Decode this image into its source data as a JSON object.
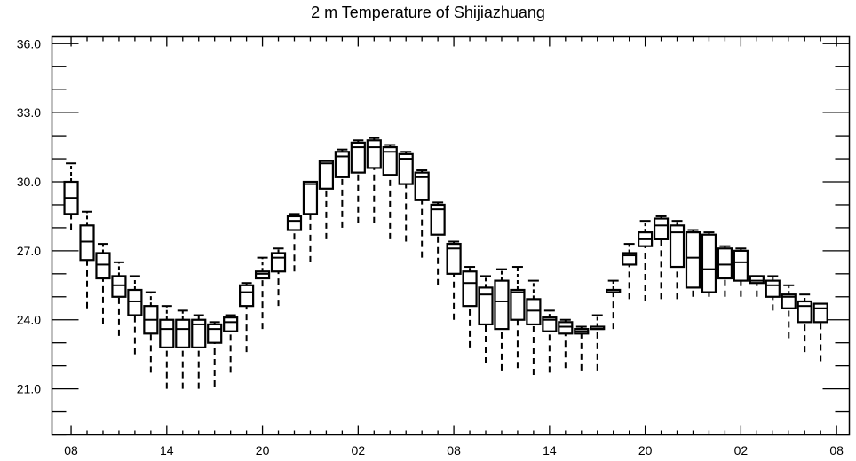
{
  "chart_data": {
    "type": "box",
    "title": "2 m Temperature of Shijiazhuang",
    "xlabel": "",
    "ylabel": "",
    "ylim": [
      19.0,
      36.3
    ],
    "yticks": [
      "36.0",
      "33.0",
      "30.0",
      "27.0",
      "24.0",
      "21.0"
    ],
    "ytick_values": [
      36.0,
      33.0,
      30.0,
      27.0,
      24.0,
      21.0
    ],
    "xticks": [
      "08",
      "14",
      "20",
      "02",
      "08",
      "14",
      "20",
      "02",
      "08"
    ],
    "xtick_hours": [
      0,
      6,
      12,
      18,
      24,
      30,
      36,
      42,
      48
    ],
    "xlim": [
      -1.2,
      48.8
    ],
    "grid": false,
    "legend": "none",
    "boxes": [
      {
        "x": 0,
        "whisker_low": 27.9,
        "q1": 28.6,
        "median": 29.3,
        "q3": 30.0,
        "whisker_high": 30.8
      },
      {
        "x": 1,
        "whisker_low": 24.5,
        "q1": 26.6,
        "median": 27.4,
        "q3": 28.1,
        "whisker_high": 28.7
      },
      {
        "x": 2,
        "whisker_low": 23.8,
        "q1": 25.8,
        "median": 26.4,
        "q3": 26.9,
        "whisker_high": 27.3
      },
      {
        "x": 3,
        "whisker_low": 23.3,
        "q1": 25.0,
        "median": 25.5,
        "q3": 25.9,
        "whisker_high": 26.5
      },
      {
        "x": 4,
        "whisker_low": 22.5,
        "q1": 24.2,
        "median": 24.8,
        "q3": 25.3,
        "whisker_high": 25.9
      },
      {
        "x": 5,
        "whisker_low": 21.7,
        "q1": 23.4,
        "median": 24.0,
        "q3": 24.6,
        "whisker_high": 25.2
      },
      {
        "x": 6,
        "whisker_low": 21.0,
        "q1": 22.8,
        "median": 23.6,
        "q3": 24.0,
        "whisker_high": 24.6
      },
      {
        "x": 7,
        "whisker_low": 21.0,
        "q1": 22.8,
        "median": 23.6,
        "q3": 24.0,
        "whisker_high": 24.4
      },
      {
        "x": 8,
        "whisker_low": 21.0,
        "q1": 22.8,
        "median": 23.8,
        "q3": 24.0,
        "whisker_high": 24.2
      },
      {
        "x": 9,
        "whisker_low": 21.1,
        "q1": 23.0,
        "median": 23.6,
        "q3": 23.8,
        "whisker_high": 23.9
      },
      {
        "x": 10,
        "whisker_low": 21.7,
        "q1": 23.5,
        "median": 23.9,
        "q3": 24.1,
        "whisker_high": 24.2
      },
      {
        "x": 11,
        "whisker_low": 22.6,
        "q1": 24.6,
        "median": 25.2,
        "q3": 25.5,
        "whisker_high": 25.6
      },
      {
        "x": 12,
        "whisker_low": 23.6,
        "q1": 25.8,
        "median": 26.0,
        "q3": 26.1,
        "whisker_high": 26.7
      },
      {
        "x": 13,
        "whisker_low": 24.6,
        "q1": 26.1,
        "median": 26.7,
        "q3": 26.9,
        "whisker_high": 27.1
      },
      {
        "x": 14,
        "whisker_low": 26.1,
        "q1": 27.9,
        "median": 28.3,
        "q3": 28.5,
        "whisker_high": 28.6
      },
      {
        "x": 15,
        "whisker_low": 26.5,
        "q1": 28.6,
        "median": 29.9,
        "q3": 30.0,
        "whisker_high": 30.0
      },
      {
        "x": 16,
        "whisker_low": 27.5,
        "q1": 29.7,
        "median": 30.8,
        "q3": 30.9,
        "whisker_high": 30.9
      },
      {
        "x": 17,
        "whisker_low": 28.0,
        "q1": 30.2,
        "median": 31.1,
        "q3": 31.3,
        "whisker_high": 31.4
      },
      {
        "x": 18,
        "whisker_low": 28.2,
        "q1": 30.4,
        "median": 31.5,
        "q3": 31.7,
        "whisker_high": 31.8
      },
      {
        "x": 19,
        "whisker_low": 28.2,
        "q1": 30.6,
        "median": 31.5,
        "q3": 31.8,
        "whisker_high": 31.9
      },
      {
        "x": 20,
        "whisker_low": 27.5,
        "q1": 30.3,
        "median": 31.3,
        "q3": 31.5,
        "whisker_high": 31.6
      },
      {
        "x": 21,
        "whisker_low": 27.4,
        "q1": 29.9,
        "median": 31.0,
        "q3": 31.2,
        "whisker_high": 31.3
      },
      {
        "x": 22,
        "whisker_low": 26.7,
        "q1": 29.2,
        "median": 30.2,
        "q3": 30.4,
        "whisker_high": 30.5
      },
      {
        "x": 23,
        "whisker_low": 25.5,
        "q1": 27.7,
        "median": 28.8,
        "q3": 29.0,
        "whisker_high": 29.1
      },
      {
        "x": 24,
        "whisker_low": 24.0,
        "q1": 26.0,
        "median": 27.1,
        "q3": 27.3,
        "whisker_high": 27.4
      },
      {
        "x": 25,
        "whisker_low": 22.8,
        "q1": 24.6,
        "median": 25.6,
        "q3": 26.1,
        "whisker_high": 26.3
      },
      {
        "x": 26,
        "whisker_low": 22.1,
        "q1": 23.8,
        "median": 25.1,
        "q3": 25.4,
        "whisker_high": 25.9
      },
      {
        "x": 27,
        "whisker_low": 21.8,
        "q1": 23.6,
        "median": 24.8,
        "q3": 25.7,
        "whisker_high": 26.2
      },
      {
        "x": 28,
        "whisker_low": 21.9,
        "q1": 24.0,
        "median": 25.2,
        "q3": 25.3,
        "whisker_high": 26.3
      },
      {
        "x": 29,
        "whisker_low": 21.6,
        "q1": 23.8,
        "median": 24.4,
        "q3": 24.9,
        "whisker_high": 25.7
      },
      {
        "x": 30,
        "whisker_low": 21.7,
        "q1": 23.5,
        "median": 24.0,
        "q3": 24.1,
        "whisker_high": 24.4
      },
      {
        "x": 31,
        "whisker_low": 21.9,
        "q1": 23.4,
        "median": 23.7,
        "q3": 23.9,
        "whisker_high": 24.0
      },
      {
        "x": 32,
        "whisker_low": 21.8,
        "q1": 23.4,
        "median": 23.5,
        "q3": 23.6,
        "whisker_high": 23.7
      },
      {
        "x": 33,
        "whisker_low": 21.8,
        "q1": 23.6,
        "median": 23.6,
        "q3": 23.7,
        "whisker_high": 24.2
      },
      {
        "x": 34,
        "whisker_low": 23.6,
        "q1": 25.2,
        "median": 25.2,
        "q3": 25.3,
        "whisker_high": 25.7
      },
      {
        "x": 35,
        "whisker_low": 24.9,
        "q1": 26.4,
        "median": 26.8,
        "q3": 26.9,
        "whisker_high": 27.3
      },
      {
        "x": 36,
        "whisker_low": 24.8,
        "q1": 27.2,
        "median": 27.5,
        "q3": 27.8,
        "whisker_high": 28.3
      },
      {
        "x": 37,
        "whisker_low": 24.9,
        "q1": 27.5,
        "median": 28.1,
        "q3": 28.4,
        "whisker_high": 28.5
      },
      {
        "x": 38,
        "whisker_low": 24.9,
        "q1": 26.3,
        "median": 27.8,
        "q3": 28.1,
        "whisker_high": 28.3
      },
      {
        "x": 39,
        "whisker_low": 25.0,
        "q1": 25.4,
        "median": 26.7,
        "q3": 27.8,
        "whisker_high": 27.9
      },
      {
        "x": 40,
        "whisker_low": 25.0,
        "q1": 25.2,
        "median": 26.2,
        "q3": 27.7,
        "whisker_high": 27.8
      },
      {
        "x": 41,
        "whisker_low": 25.0,
        "q1": 25.8,
        "median": 26.4,
        "q3": 27.1,
        "whisker_high": 27.2
      },
      {
        "x": 42,
        "whisker_low": 25.0,
        "q1": 25.7,
        "median": 26.5,
        "q3": 27.0,
        "whisker_high": 27.1
      },
      {
        "x": 43,
        "whisker_low": 25.0,
        "q1": 25.6,
        "median": 25.7,
        "q3": 25.9,
        "whisker_high": 25.9
      },
      {
        "x": 44,
        "whisker_low": 24.4,
        "q1": 25.0,
        "median": 25.5,
        "q3": 25.7,
        "whisker_high": 25.9
      },
      {
        "x": 45,
        "whisker_low": 23.2,
        "q1": 24.5,
        "median": 25.0,
        "q3": 25.1,
        "whisker_high": 25.5
      },
      {
        "x": 46,
        "whisker_low": 22.6,
        "q1": 23.9,
        "median": 24.6,
        "q3": 24.8,
        "whisker_high": 25.1
      },
      {
        "x": 47,
        "whisker_low": 22.2,
        "q1": 23.9,
        "median": 24.5,
        "q3": 24.7,
        "whisker_high": 24.7
      }
    ]
  }
}
